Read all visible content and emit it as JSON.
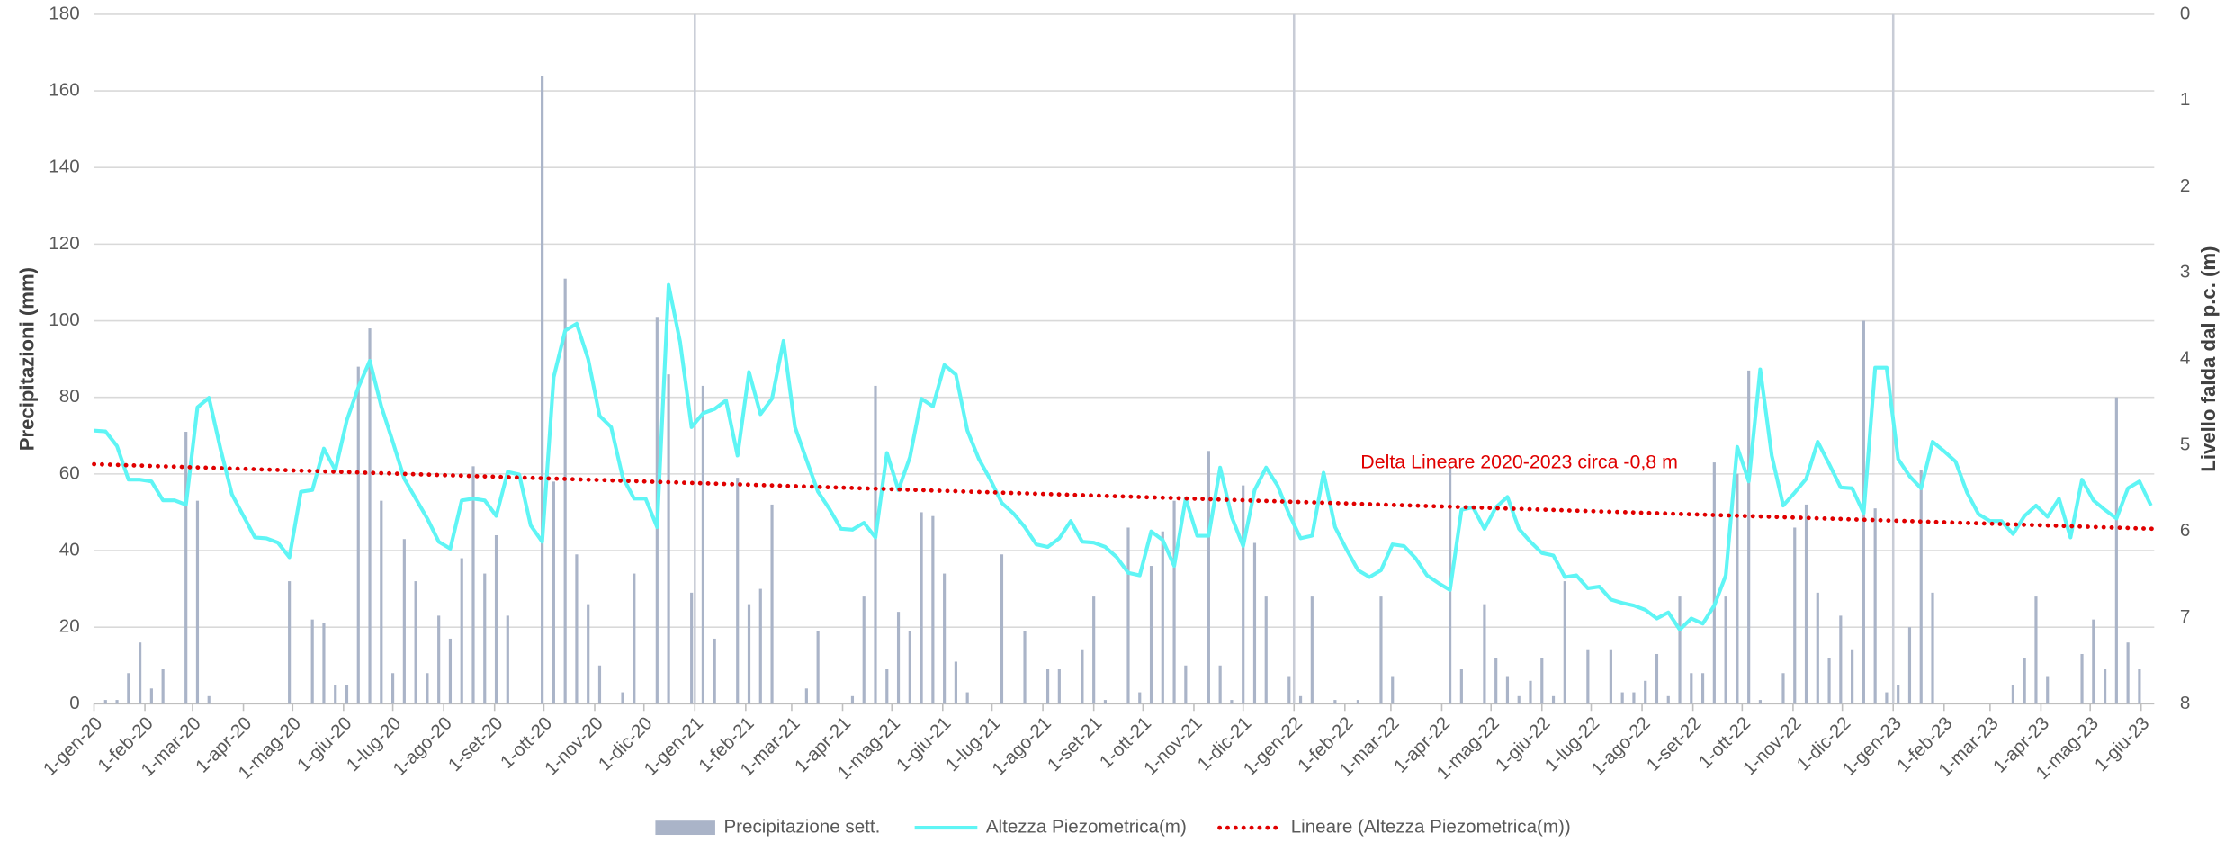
{
  "chart_data": {
    "type": "bar-line",
    "y_label": "Precipitazioni (mm)",
    "y2_label": "Livello falda dal p.c. (m)",
    "annotation": "Delta Lineare 2020-2023 circa -0,8 m",
    "xlim": [
      0,
      1255
    ],
    "xticks": [
      {
        "value": 0,
        "label": "1-gen-20"
      },
      {
        "value": 31,
        "label": "1-feb-20"
      },
      {
        "value": 60,
        "label": "1-mar-20"
      },
      {
        "value": 91,
        "label": "1-apr-20"
      },
      {
        "value": 121,
        "label": "1-mag-20"
      },
      {
        "value": 152,
        "label": "1-giu-20"
      },
      {
        "value": 182,
        "label": "1-lug-20"
      },
      {
        "value": 213,
        "label": "1-ago-20"
      },
      {
        "value": 244,
        "label": "1-set-20"
      },
      {
        "value": 274,
        "label": "1-ott-20"
      },
      {
        "value": 305,
        "label": "1-nov-20"
      },
      {
        "value": 335,
        "label": "1-dic-20"
      },
      {
        "value": 366,
        "label": "1-gen-21"
      },
      {
        "value": 397,
        "label": "1-feb-21"
      },
      {
        "value": 425,
        "label": "1-mar-21"
      },
      {
        "value": 456,
        "label": "1-apr-21"
      },
      {
        "value": 486,
        "label": "1-mag-21"
      },
      {
        "value": 517,
        "label": "1-giu-21"
      },
      {
        "value": 547,
        "label": "1-lug-21"
      },
      {
        "value": 578,
        "label": "1-ago-21"
      },
      {
        "value": 609,
        "label": "1-set-21"
      },
      {
        "value": 639,
        "label": "1-ott-21"
      },
      {
        "value": 670,
        "label": "1-nov-21"
      },
      {
        "value": 700,
        "label": "1-dic-21"
      },
      {
        "value": 731,
        "label": "1-gen-22"
      },
      {
        "value": 762,
        "label": "1-feb-22"
      },
      {
        "value": 790,
        "label": "1-mar-22"
      },
      {
        "value": 821,
        "label": "1-apr-22"
      },
      {
        "value": 851,
        "label": "1-mag-22"
      },
      {
        "value": 882,
        "label": "1-giu-22"
      },
      {
        "value": 912,
        "label": "1-lug-22"
      },
      {
        "value": 943,
        "label": "1-ago-22"
      },
      {
        "value": 974,
        "label": "1-set-22"
      },
      {
        "value": 1004,
        "label": "1-ott-22"
      },
      {
        "value": 1035,
        "label": "1-nov-22"
      },
      {
        "value": 1065,
        "label": "1-dic-22"
      },
      {
        "value": 1096,
        "label": "1-gen-23"
      },
      {
        "value": 1127,
        "label": "1-feb-23"
      },
      {
        "value": 1155,
        "label": "1-mar-23"
      },
      {
        "value": 1186,
        "label": "1-apr-23"
      },
      {
        "value": 1216,
        "label": "1-mag-23"
      },
      {
        "value": 1247,
        "label": "1-giu-23"
      }
    ],
    "ylim": [
      0,
      180
    ],
    "yticks": [
      0,
      20,
      40,
      60,
      80,
      100,
      120,
      140,
      160,
      180
    ],
    "y2lim": [
      8,
      0
    ],
    "y2ticks": [
      0,
      1,
      2,
      3,
      4,
      5,
      6,
      7,
      8
    ],
    "grid": true,
    "legend": "bottom",
    "x": [
      0,
      7,
      14,
      21,
      28,
      35,
      42,
      49,
      56,
      63,
      70,
      77,
      84,
      91,
      98,
      105,
      112,
      119,
      126,
      133,
      140,
      147,
      154,
      161,
      168,
      175,
      182,
      189,
      196,
      203,
      210,
      217,
      224,
      231,
      238,
      245,
      252,
      259,
      266,
      273,
      280,
      287,
      294,
      301,
      308,
      315,
      322,
      329,
      336,
      343,
      350,
      357,
      364,
      371,
      378,
      385,
      392,
      399,
      406,
      413,
      420,
      427,
      434,
      441,
      448,
      455,
      462,
      469,
      476,
      483,
      490,
      497,
      504,
      511,
      518,
      525,
      532,
      539,
      546,
      553,
      560,
      567,
      574,
      581,
      588,
      595,
      602,
      609,
      616,
      623,
      630,
      637,
      644,
      651,
      658,
      665,
      672,
      679,
      686,
      693,
      700,
      707,
      714,
      721,
      728,
      735,
      742,
      749,
      756,
      763,
      770,
      777,
      784,
      791,
      798,
      805,
      812,
      819,
      826,
      833,
      840,
      847,
      854,
      861,
      868,
      875,
      882,
      889,
      896,
      903,
      910,
      917,
      924,
      931,
      938,
      945,
      952,
      959,
      966,
      973,
      980,
      987,
      994,
      1001,
      1008,
      1015,
      1022,
      1029,
      1036,
      1043,
      1050,
      1057,
      1064,
      1071,
      1078,
      1085,
      1092,
      1099,
      1106,
      1113,
      1120,
      1127,
      1134,
      1141,
      1148,
      1155,
      1162,
      1169,
      1176,
      1183,
      1190,
      1197,
      1204,
      1211,
      1218,
      1225,
      1232,
      1239,
      1246,
      1253
    ],
    "series": [
      {
        "name": "Precipitazione sett.",
        "type": "bar",
        "color": "#aab4c8",
        "values": [
          0,
          1,
          1,
          8,
          16,
          4,
          9,
          0,
          71,
          53,
          2,
          0,
          0,
          0,
          0,
          0,
          0,
          32,
          0,
          22,
          21,
          5,
          5,
          88,
          98,
          53,
          8,
          43,
          32,
          8,
          23,
          17,
          38,
          62,
          34,
          44,
          23,
          0,
          0,
          164,
          58,
          111,
          39,
          26,
          10,
          0,
          3,
          34,
          0,
          101,
          86,
          0,
          29,
          83,
          17,
          0,
          59,
          26,
          30,
          52,
          0,
          0,
          4,
          19,
          0,
          0,
          2,
          28,
          83,
          9,
          24,
          19,
          50,
          49,
          34,
          11,
          3,
          0,
          0,
          39,
          0,
          19,
          0,
          9,
          9,
          0,
          14,
          28,
          1,
          0,
          46,
          3,
          36,
          45,
          53,
          10,
          0,
          66,
          10,
          1,
          57,
          42,
          28,
          0,
          7,
          2,
          28,
          0,
          1,
          0,
          1,
          0,
          28,
          7,
          0,
          0,
          0,
          0,
          62,
          9,
          0,
          26,
          12,
          7,
          2,
          6,
          12,
          2,
          32,
          0,
          14,
          0,
          14,
          3,
          3,
          6,
          13,
          2,
          28,
          8,
          8,
          63,
          28,
          60,
          87,
          1,
          0,
          8,
          46,
          52,
          29,
          12,
          23,
          14,
          100,
          51,
          3,
          5,
          20,
          61,
          29,
          0,
          0,
          0,
          0,
          0,
          0,
          5,
          12,
          28,
          7,
          0,
          0,
          13,
          22,
          9,
          80,
          16,
          9,
          0
        ]
      },
      {
        "name": "Altezza Piezometrica(m)",
        "type": "line",
        "axis": "y2",
        "color": "#5ff5f5",
        "values": [
          4.83,
          4.84,
          5.01,
          5.4,
          5.4,
          5.42,
          5.64,
          5.64,
          5.69,
          4.56,
          4.45,
          5.04,
          5.57,
          5.82,
          6.07,
          6.08,
          6.13,
          6.3,
          5.54,
          5.52,
          5.04,
          5.29,
          4.71,
          4.33,
          4.02,
          4.55,
          4.96,
          5.39,
          5.62,
          5.85,
          6.12,
          6.2,
          5.64,
          5.62,
          5.64,
          5.82,
          5.31,
          5.34,
          5.93,
          6.12,
          4.21,
          3.67,
          3.59,
          4.0,
          4.66,
          4.79,
          5.37,
          5.62,
          5.62,
          5.95,
          3.14,
          3.8,
          4.79,
          4.63,
          4.58,
          4.48,
          5.12,
          4.15,
          4.64,
          4.46,
          3.79,
          4.79,
          5.17,
          5.54,
          5.74,
          5.97,
          5.98,
          5.9,
          6.07,
          5.09,
          5.52,
          5.14,
          4.46,
          4.55,
          4.07,
          4.18,
          4.83,
          5.16,
          5.4,
          5.67,
          5.79,
          5.95,
          6.15,
          6.18,
          6.08,
          5.88,
          6.12,
          6.13,
          6.18,
          6.3,
          6.48,
          6.51,
          6.0,
          6.1,
          6.4,
          5.62,
          6.05,
          6.05,
          5.26,
          5.83,
          6.17,
          5.52,
          5.26,
          5.47,
          5.8,
          6.08,
          6.05,
          5.32,
          5.95,
          6.21,
          6.45,
          6.53,
          6.45,
          6.15,
          6.17,
          6.31,
          6.51,
          6.6,
          6.68,
          5.75,
          5.72,
          5.97,
          5.72,
          5.6,
          5.97,
          6.12,
          6.25,
          6.28,
          6.53,
          6.51,
          6.66,
          6.64,
          6.79,
          6.83,
          6.86,
          6.91,
          7.01,
          6.94,
          7.14,
          7.01,
          7.07,
          6.86,
          6.51,
          5.02,
          5.42,
          4.12,
          5.12,
          5.7,
          5.55,
          5.39,
          4.96,
          5.22,
          5.49,
          5.5,
          5.79,
          4.1,
          4.1,
          5.16,
          5.36,
          5.5,
          4.96,
          5.07,
          5.19,
          5.55,
          5.8,
          5.88,
          5.88,
          6.03,
          5.82,
          5.7,
          5.83,
          5.62,
          6.07,
          5.4,
          5.64,
          5.75,
          5.85,
          5.5,
          5.42,
          5.7
        ]
      },
      {
        "name": "Lineare (Altezza Piezometrica(m))",
        "type": "line",
        "axis": "y2",
        "color": "#e00000",
        "style": "dotted",
        "x": [
          0,
          1255
        ],
        "values": [
          5.22,
          5.97
        ]
      }
    ]
  }
}
